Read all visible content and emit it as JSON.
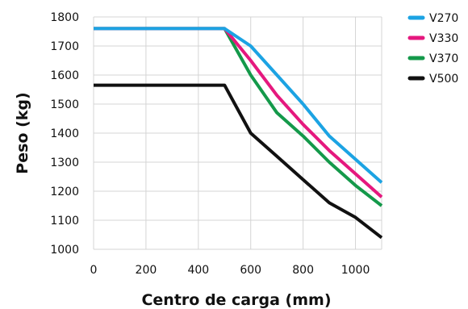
{
  "chart_data": {
    "type": "line",
    "title": "",
    "xlabel": "Centro de carga (mm)",
    "ylabel": "Peso (kg)",
    "xlim": [
      0,
      1100
    ],
    "ylim": [
      1000,
      1800
    ],
    "xticks": [
      0,
      200,
      400,
      600,
      800,
      1000
    ],
    "yticks": [
      1000,
      1100,
      1200,
      1300,
      1400,
      1500,
      1600,
      1700,
      1800
    ],
    "grid": true,
    "legend_position": "top-right",
    "series": [
      {
        "name": "V270",
        "color": "#1ca3e3",
        "x": [
          0,
          500,
          600,
          700,
          800,
          900,
          1000,
          1100
        ],
        "y": [
          1760,
          1760,
          1700,
          1600,
          1500,
          1390,
          1310,
          1230
        ]
      },
      {
        "name": "V330",
        "color": "#e5187e",
        "x": [
          0,
          500,
          600,
          700,
          800,
          900,
          1000,
          1100
        ],
        "y": [
          1760,
          1760,
          1650,
          1530,
          1430,
          1340,
          1260,
          1180
        ]
      },
      {
        "name": "V370",
        "color": "#14994a",
        "x": [
          0,
          500,
          600,
          700,
          800,
          900,
          1000,
          1100
        ],
        "y": [
          1760,
          1760,
          1600,
          1470,
          1390,
          1300,
          1220,
          1150
        ]
      },
      {
        "name": "V500",
        "color": "#111111",
        "x": [
          0,
          500,
          600,
          700,
          800,
          900,
          1000,
          1100
        ],
        "y": [
          1565,
          1565,
          1400,
          1320,
          1240,
          1160,
          1110,
          1040
        ]
      }
    ]
  }
}
